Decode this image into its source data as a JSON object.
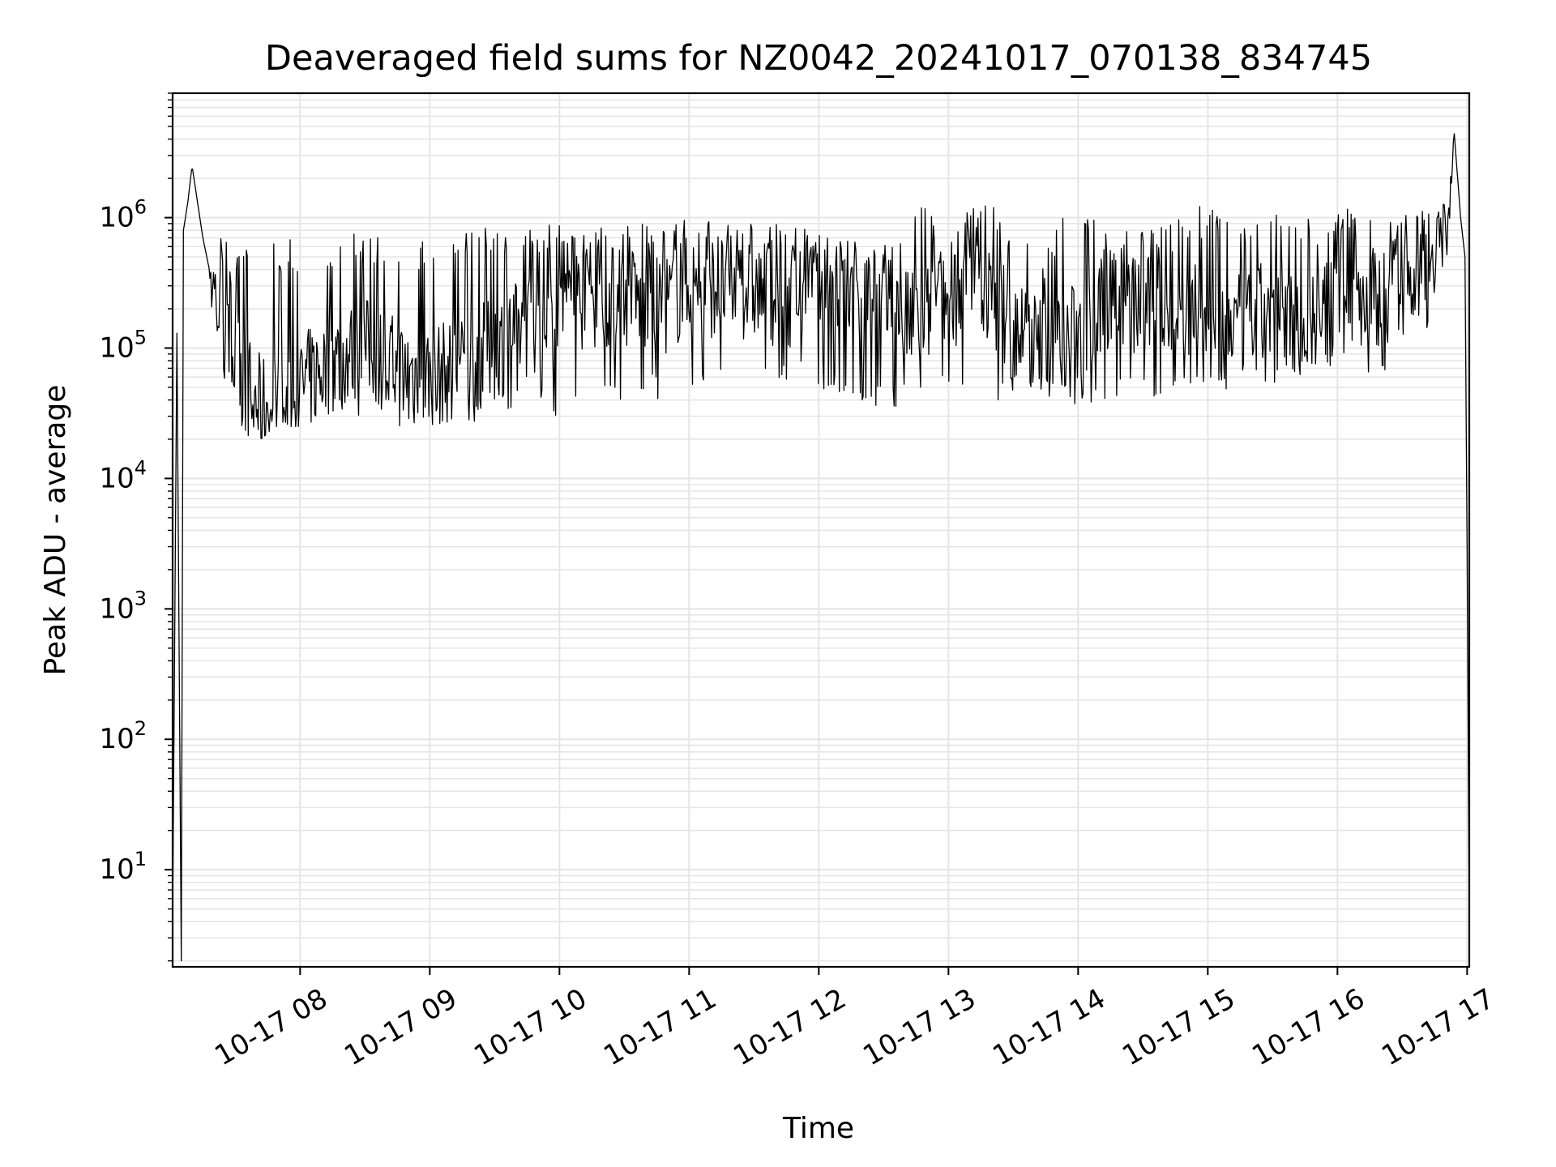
{
  "chart_data": {
    "type": "line",
    "title": "Deaveraged field sums for NZ0042_20241017_070138_834745",
    "xlabel": "Time",
    "ylabel": "Peak ADU - average",
    "y_scale": "log",
    "ylim": [
      1.8,
      9000000
    ],
    "xlim": [
      "2024-10-17 07:01",
      "2024-10-17 17:01"
    ],
    "grid": {
      "major": true,
      "minor": true
    },
    "x_ticks": [
      "10-17 08",
      "10-17 09",
      "10-17 10",
      "10-17 11",
      "10-17 12",
      "10-17 13",
      "10-17 14",
      "10-17 15",
      "10-17 16",
      "10-17 17"
    ],
    "y_ticks": [
      {
        "base": "10",
        "exp": "1"
      },
      {
        "base": "10",
        "exp": "2"
      },
      {
        "base": "10",
        "exp": "3"
      },
      {
        "base": "10",
        "exp": "4"
      },
      {
        "base": "10",
        "exp": "5"
      },
      {
        "base": "10",
        "exp": "6"
      }
    ],
    "line_color": "#000000",
    "grid_color": "#e5e5e5",
    "series": [
      {
        "x": [
          "2024-10-17 07:01",
          "2024-10-17 07:03",
          "2024-10-17 07:05",
          "2024-10-17 07:06",
          "2024-10-17 07:08",
          "2024-10-17 07:10",
          "2024-10-17 07:12",
          "2024-10-17 07:15",
          "2024-10-17 07:18",
          "2024-10-17 07:21",
          "2024-10-17 07:24",
          "2024-10-17 07:27",
          "2024-10-17 07:30",
          "2024-10-17 07:36",
          "2024-10-17 07:42",
          "2024-10-17 07:48",
          "2024-10-17 07:54",
          "2024-10-17 08:00",
          "2024-10-17 08:15",
          "2024-10-17 08:30",
          "2024-10-17 08:45",
          "2024-10-17 09:00",
          "2024-10-17 09:15",
          "2024-10-17 09:30",
          "2024-10-17 09:45",
          "2024-10-17 10:00",
          "2024-10-17 10:15",
          "2024-10-17 10:30",
          "2024-10-17 10:45",
          "2024-10-17 11:00",
          "2024-10-17 11:15",
          "2024-10-17 11:30",
          "2024-10-17 11:45",
          "2024-10-17 12:00",
          "2024-10-17 12:15",
          "2024-10-17 12:30",
          "2024-10-17 12:45",
          "2024-10-17 13:00",
          "2024-10-17 13:15",
          "2024-10-17 13:30",
          "2024-10-17 13:45",
          "2024-10-17 14:00",
          "2024-10-17 14:15",
          "2024-10-17 14:30",
          "2024-10-17 14:45",
          "2024-10-17 15:00",
          "2024-10-17 15:15",
          "2024-10-17 15:30",
          "2024-10-17 15:45",
          "2024-10-17 16:00",
          "2024-10-17 16:15",
          "2024-10-17 16:30",
          "2024-10-17 16:40",
          "2024-10-17 16:48",
          "2024-10-17 16:51",
          "2024-10-17 16:54",
          "2024-10-17 16:57",
          "2024-10-17 16:59",
          "2024-10-17 17:00",
          "2024-10-17 17:01"
        ],
        "y": [
          4,
          130000,
          2,
          800000,
          1300000,
          2500000,
          1500000,
          700000,
          400000,
          250000,
          120000,
          100000,
          80000,
          50000,
          35000,
          40000,
          30000,
          50000,
          80000,
          100000,
          70000,
          60000,
          70000,
          100000,
          150000,
          200000,
          250000,
          250000,
          200000,
          300000,
          300000,
          280000,
          250000,
          300000,
          250000,
          200000,
          150000,
          250000,
          300000,
          150000,
          100000,
          130000,
          250000,
          200000,
          200000,
          180000,
          150000,
          200000,
          150000,
          200000,
          250000,
          300000,
          500000,
          800000,
          1000000,
          4500000,
          1000000,
          500000,
          3000,
          4
        ],
        "upper": [
          4,
          130000,
          2,
          800000,
          1300000,
          2500000,
          1500000,
          700000,
          400000,
          600000,
          800000,
          600000,
          500000,
          600000,
          700000,
          700000,
          700000,
          700000,
          700000,
          800000,
          700000,
          700000,
          800000,
          900000,
          900000,
          900000,
          900000,
          900000,
          1000000,
          1000000,
          950000,
          900000,
          900000,
          800000,
          700000,
          600000,
          1500000,
          800000,
          1500000,
          900000,
          600000,
          1700000,
          800000,
          900000,
          1000000,
          1300000,
          800000,
          1100000,
          1000000,
          1200000,
          1200000,
          1200000,
          1300000,
          1300000,
          1200000,
          4500000,
          1000000,
          500000,
          5000,
          4
        ],
        "lower": [
          4,
          130000,
          2,
          800000,
          1300000,
          2500000,
          1500000,
          700000,
          400000,
          60000,
          40000,
          30000,
          25000,
          20000,
          20000,
          25000,
          25000,
          25000,
          30000,
          30000,
          25000,
          25000,
          25000,
          30000,
          30000,
          30000,
          35000,
          40000,
          40000,
          40000,
          45000,
          45000,
          50000,
          50000,
          40000,
          35000,
          35000,
          40000,
          40000,
          40000,
          40000,
          35000,
          40000,
          40000,
          40000,
          40000,
          45000,
          45000,
          45000,
          50000,
          50000,
          60000,
          100000,
          300000,
          500000,
          4500000,
          1000000,
          500000,
          300,
          4
        ]
      }
    ]
  }
}
